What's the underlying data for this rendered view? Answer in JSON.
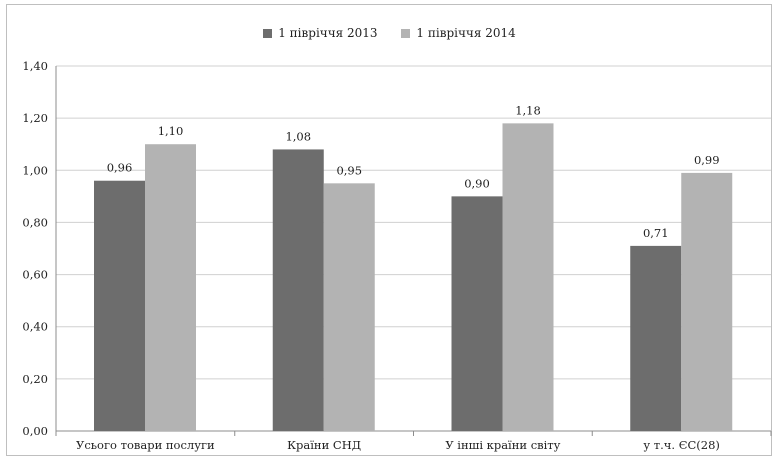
{
  "chart_data": {
    "type": "bar",
    "categories": [
      "Усього товари послуги",
      "Країни СНД",
      "У інші країни світу",
      "у т.ч. ЄС(28)"
    ],
    "series": [
      {
        "name": "1 півріччя 2013",
        "values": [
          0.96,
          1.08,
          0.9,
          0.71
        ],
        "labels": [
          "0,96",
          "1,08",
          "0,90",
          "0,71"
        ],
        "color": "#6d6d6d"
      },
      {
        "name": "1 півріччя 2014",
        "values": [
          1.1,
          0.95,
          1.18,
          0.99
        ],
        "labels": [
          "1,10",
          "0,95",
          "1,18",
          "0,99"
        ],
        "color": "#b3b3b3"
      }
    ],
    "ylim": [
      0,
      1.4
    ],
    "yticks": [
      0,
      0.2,
      0.4,
      0.6,
      0.8,
      1.0,
      1.2,
      1.4
    ],
    "ytick_labels": [
      "0,00",
      "0,20",
      "0,40",
      "0,60",
      "0,80",
      "1,00",
      "1,20",
      "1,40"
    ],
    "grid": true,
    "legend_position": "top-center",
    "title": "",
    "xlabel": "",
    "ylabel": ""
  }
}
